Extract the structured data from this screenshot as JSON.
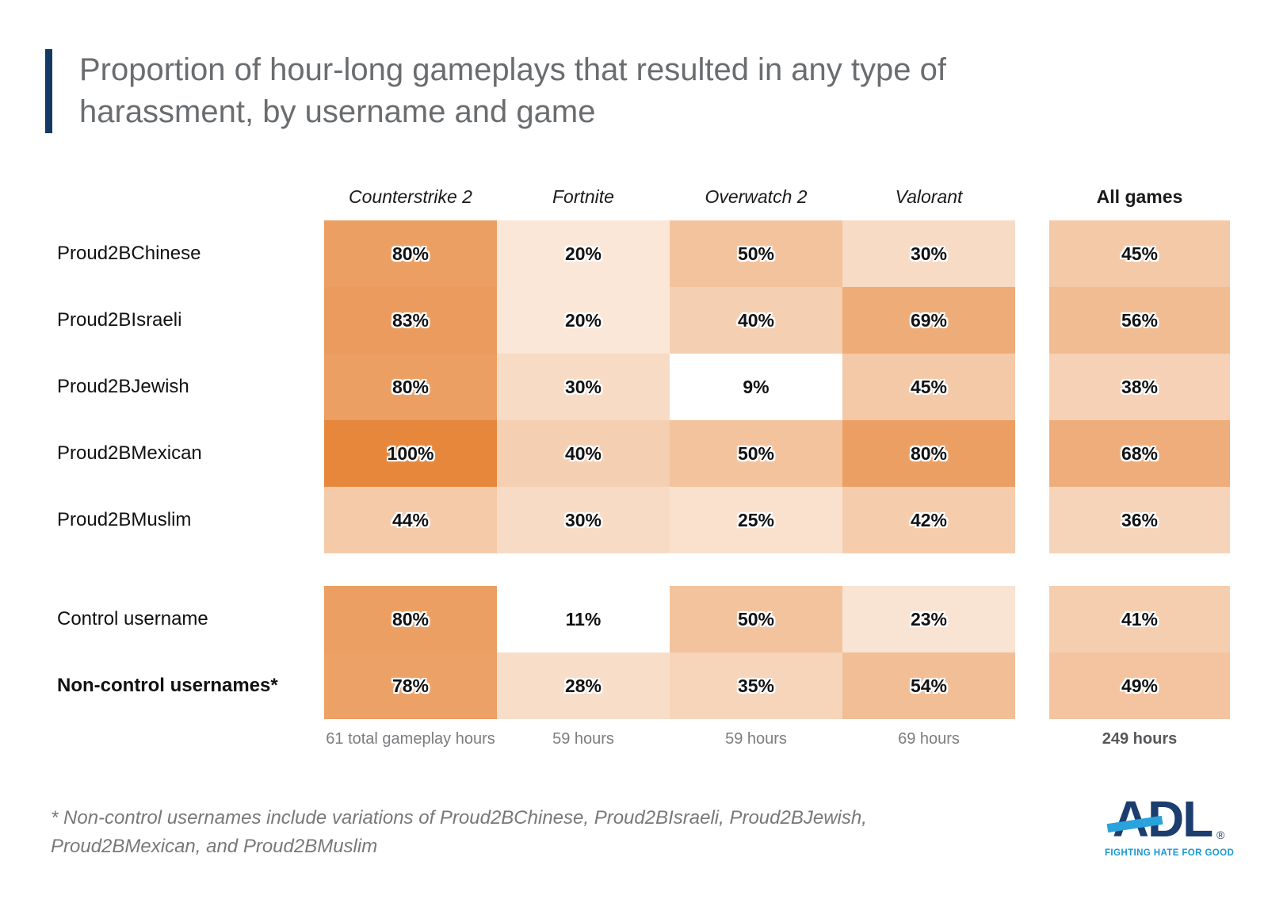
{
  "title": {
    "line1": "Proportion of hour-long gameplays that resulted in any type of",
    "line2": "harassment, by username and game"
  },
  "chart_data": {
    "type": "heatmap",
    "title": "Proportion of hour-long gameplays that resulted in any type of harassment, by username and game",
    "value_unit": "%",
    "columns": [
      "Counterstrike 2",
      "Fortnite",
      "Overwatch 2",
      "Valorant"
    ],
    "summary_column": "All games",
    "rows": [
      {
        "label": "Proud2BChinese",
        "values": [
          80,
          20,
          50,
          30
        ],
        "all_games": 45
      },
      {
        "label": "Proud2BIsraeli",
        "values": [
          83,
          20,
          40,
          69
        ],
        "all_games": 56
      },
      {
        "label": "Proud2BJewish",
        "values": [
          80,
          30,
          9,
          45
        ],
        "all_games": 38
      },
      {
        "label": "Proud2BMexican",
        "values": [
          100,
          40,
          50,
          80
        ],
        "all_games": 68
      },
      {
        "label": "Proud2BMuslim",
        "values": [
          44,
          30,
          25,
          42
        ],
        "all_games": 36
      }
    ],
    "control_rows": [
      {
        "label": "Control username",
        "bold": false,
        "values": [
          80,
          11,
          50,
          23
        ],
        "all_games": 41
      },
      {
        "label": "Non-control usernames*",
        "bold": true,
        "values": [
          78,
          28,
          35,
          54
        ],
        "all_games": 49
      }
    ],
    "hours": [
      "61 total gameplay hours",
      "59 hours",
      "59 hours",
      "69 hours"
    ],
    "all_games_hours": "249 hours",
    "color_scale": {
      "min": 0,
      "max": 100,
      "min_color": "#ffffff",
      "max_color": "#e6873c",
      "white_floor": 12
    },
    "legend": "none",
    "grid": "off"
  },
  "footnote": {
    "line1": "* Non-control usernames include variations of Proud2BChinese, Proud2BIsraeli, Proud2BJewish,",
    "line2": "Proud2BMexican, and Proud2BMuslim"
  },
  "logo": {
    "text": "ADL",
    "registered": "®",
    "tagline": "FIGHTING HATE FOR GOOD"
  },
  "colors": {
    "title_accent_bar": "#143a64",
    "title_text": "#6a6d70",
    "heatmap_max": "#e6873c",
    "heatmap_min": "#ffffff",
    "hours_text": "#7c7d80",
    "footnote_text": "#77787b",
    "logo_navy": "#1c3e6e",
    "logo_slash_blue": "#2aa3dd",
    "tagline_blue": "#1899d4"
  }
}
